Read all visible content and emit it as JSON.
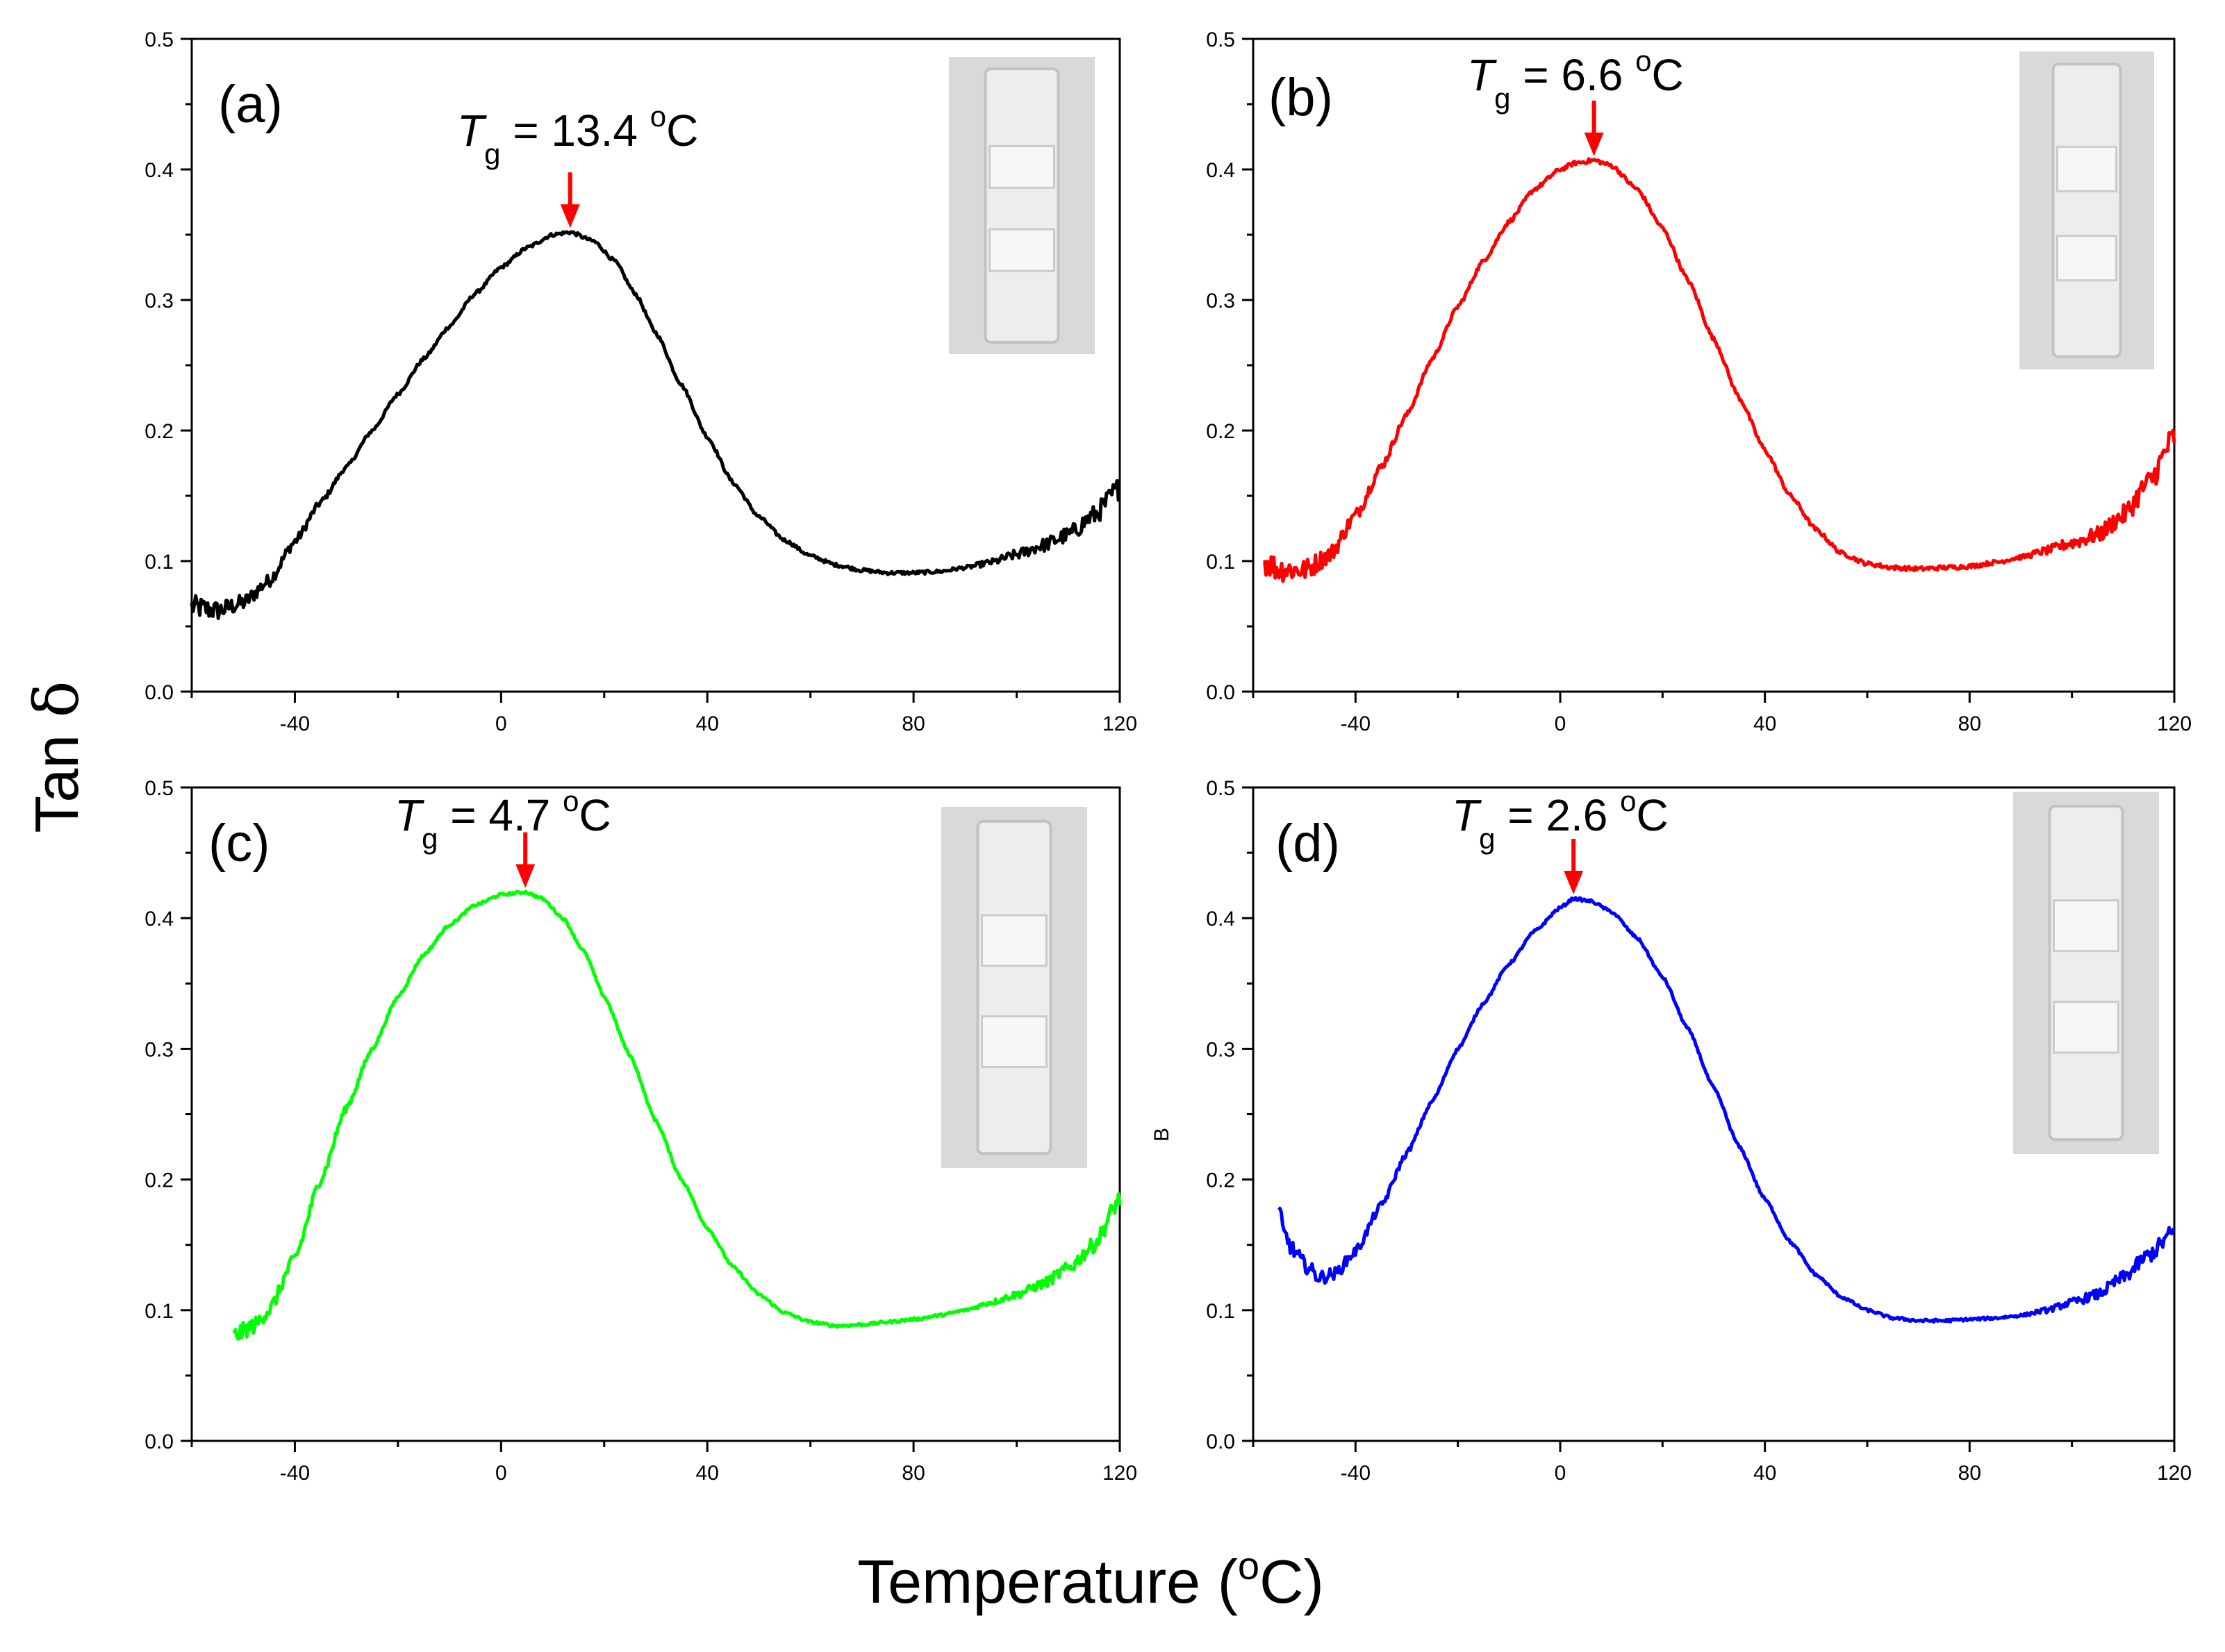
{
  "figure": {
    "ylabel": "Tan δ",
    "xlabel": "Temperature (°C)",
    "xlabel_main": "Temperature (",
    "xlabel_sup": "o",
    "xlabel_end": "C)",
    "ylabel_main": "Tan ",
    "ylabel_symbol": "δ",
    "stray_label": "B"
  },
  "chart_data": [
    {
      "type": "line",
      "panel": "(a)",
      "color": "#000000",
      "tg_value": "13.4",
      "tg_letter": "T",
      "tg_sub": "g",
      "tg_suffix": " = 13.4 ",
      "tg_unit_sup": "o",
      "tg_unit": "C",
      "peak_temp": 13.4,
      "xlim": [
        -60,
        120
      ],
      "ylim": [
        0,
        0.5
      ],
      "xticks": [
        -40,
        0,
        40,
        80,
        120
      ],
      "yticks": [
        "0.0",
        "0.1",
        "0.2",
        "0.3",
        "0.4",
        "0.5"
      ],
      "x": [
        -60,
        -55,
        -50,
        -45,
        -40,
        -35,
        -30,
        -25,
        -20,
        -15,
        -10,
        -5,
        0,
        5,
        10,
        13.4,
        18,
        22,
        26,
        30,
        35,
        40,
        45,
        50,
        55,
        60,
        65,
        70,
        75,
        80,
        85,
        90,
        95,
        100,
        105,
        110,
        115,
        120
      ],
      "y": [
        0.065,
        0.062,
        0.068,
        0.085,
        0.115,
        0.145,
        0.172,
        0.2,
        0.228,
        0.255,
        0.28,
        0.305,
        0.325,
        0.34,
        0.35,
        0.352,
        0.345,
        0.33,
        0.305,
        0.275,
        0.235,
        0.195,
        0.16,
        0.134,
        0.116,
        0.104,
        0.097,
        0.093,
        0.091,
        0.091,
        0.092,
        0.095,
        0.099,
        0.105,
        0.112,
        0.12,
        0.135,
        0.156
      ],
      "noise": 0.009
    },
    {
      "type": "line",
      "panel": "(b)",
      "color": "#ff0000",
      "tg_value": "6.6",
      "tg_letter": "T",
      "tg_sub": "g",
      "tg_suffix": " = 6.6 ",
      "tg_unit_sup": "o",
      "tg_unit": "C",
      "peak_temp": 6.6,
      "xlim": [
        -60,
        120
      ],
      "ylim": [
        0,
        0.5
      ],
      "xticks": [
        -40,
        0,
        40,
        80,
        120
      ],
      "yticks": [
        "0.0",
        "0.1",
        "0.2",
        "0.3",
        "0.4",
        "0.5"
      ],
      "x": [
        -58,
        -55,
        -50,
        -45,
        -40,
        -35,
        -30,
        -25,
        -20,
        -15,
        -10,
        -5,
        0,
        3,
        6.6,
        10,
        15,
        20,
        25,
        30,
        35,
        40,
        45,
        50,
        55,
        60,
        65,
        70,
        75,
        80,
        85,
        90,
        95,
        100,
        105,
        110,
        115,
        120
      ],
      "y": [
        0.1,
        0.094,
        0.093,
        0.105,
        0.135,
        0.172,
        0.212,
        0.255,
        0.295,
        0.33,
        0.36,
        0.385,
        0.4,
        0.405,
        0.407,
        0.403,
        0.385,
        0.355,
        0.315,
        0.27,
        0.225,
        0.185,
        0.15,
        0.124,
        0.106,
        0.098,
        0.095,
        0.094,
        0.095,
        0.096,
        0.099,
        0.103,
        0.108,
        0.114,
        0.12,
        0.135,
        0.16,
        0.195
      ],
      "noise": 0.011
    },
    {
      "type": "line",
      "panel": "(c)",
      "color": "#00ff00",
      "tg_value": "4.7",
      "tg_letter": "T",
      "tg_sub": "g",
      "tg_suffix": " = 4.7 ",
      "tg_unit_sup": "o",
      "tg_unit": "C",
      "peak_temp": 4.7,
      "xlim": [
        -60,
        120
      ],
      "ylim": [
        0,
        0.5
      ],
      "xticks": [
        -40,
        0,
        40,
        80,
        120
      ],
      "yticks": [
        "0.0",
        "0.1",
        "0.2",
        "0.3",
        "0.4",
        "0.5"
      ],
      "x": [
        -52,
        -48,
        -45,
        -40,
        -35,
        -30,
        -25,
        -20,
        -15,
        -10,
        -5,
        0,
        4.7,
        8,
        12,
        16,
        20,
        25,
        30,
        35,
        40,
        45,
        50,
        55,
        60,
        65,
        70,
        75,
        80,
        85,
        90,
        95,
        100,
        105,
        110,
        115,
        120
      ],
      "y": [
        0.08,
        0.088,
        0.1,
        0.14,
        0.2,
        0.255,
        0.3,
        0.34,
        0.372,
        0.395,
        0.41,
        0.418,
        0.42,
        0.415,
        0.4,
        0.375,
        0.34,
        0.295,
        0.245,
        0.2,
        0.163,
        0.133,
        0.112,
        0.098,
        0.091,
        0.088,
        0.089,
        0.091,
        0.093,
        0.096,
        0.1,
        0.106,
        0.112,
        0.12,
        0.132,
        0.15,
        0.185
      ],
      "noise": 0.007
    },
    {
      "type": "line",
      "panel": "(d)",
      "color": "#0000ff",
      "tg_value": "2.6",
      "tg_letter": "T",
      "tg_sub": "g",
      "tg_suffix": " = 2.6 ",
      "tg_unit_sup": "o",
      "tg_unit": "C",
      "peak_temp": 2.6,
      "xlim": [
        -60,
        120
      ],
      "ylim": [
        0,
        0.5
      ],
      "xticks": [
        -40,
        0,
        40,
        80,
        120
      ],
      "yticks": [
        "0.0",
        "0.1",
        "0.2",
        "0.3",
        "0.4",
        "0.5"
      ],
      "x": [
        -55,
        -54,
        -52,
        -50,
        -47,
        -44,
        -40,
        -35,
        -30,
        -25,
        -20,
        -15,
        -10,
        -5,
        0,
        2.6,
        6,
        10,
        15,
        20,
        25,
        30,
        35,
        40,
        45,
        50,
        55,
        60,
        65,
        70,
        75,
        80,
        85,
        90,
        95,
        100,
        105,
        110,
        115,
        120
      ],
      "y": [
        0.178,
        0.158,
        0.145,
        0.135,
        0.125,
        0.128,
        0.145,
        0.18,
        0.22,
        0.26,
        0.3,
        0.335,
        0.365,
        0.39,
        0.408,
        0.415,
        0.413,
        0.405,
        0.385,
        0.355,
        0.315,
        0.27,
        0.225,
        0.185,
        0.152,
        0.127,
        0.11,
        0.1,
        0.094,
        0.092,
        0.092,
        0.093,
        0.094,
        0.096,
        0.1,
        0.106,
        0.112,
        0.125,
        0.142,
        0.16
      ],
      "noise": 0.007
    }
  ]
}
